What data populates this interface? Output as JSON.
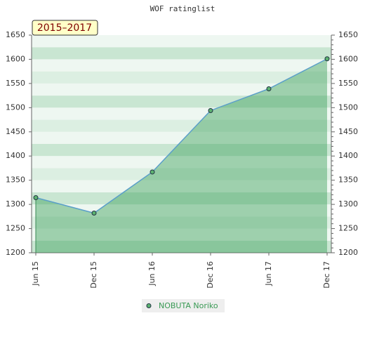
{
  "chart_data": {
    "type": "line",
    "title": "WOF ratinglist",
    "annotation": "2015–2017",
    "categories": [
      "Jun 15",
      "Dec 15",
      "Jun 16",
      "Dec 16",
      "Jun 17",
      "Dec 17"
    ],
    "series": [
      {
        "name": "NOBUTA Noriko",
        "color": "#5b9fc9",
        "values": [
          1314,
          1282,
          1367,
          1494,
          1539,
          1601
        ]
      }
    ],
    "ylim": [
      1200,
      1650
    ],
    "yticks": [
      1200,
      1250,
      1300,
      1350,
      1400,
      1450,
      1500,
      1550,
      1600,
      1650
    ],
    "grid": true
  }
}
